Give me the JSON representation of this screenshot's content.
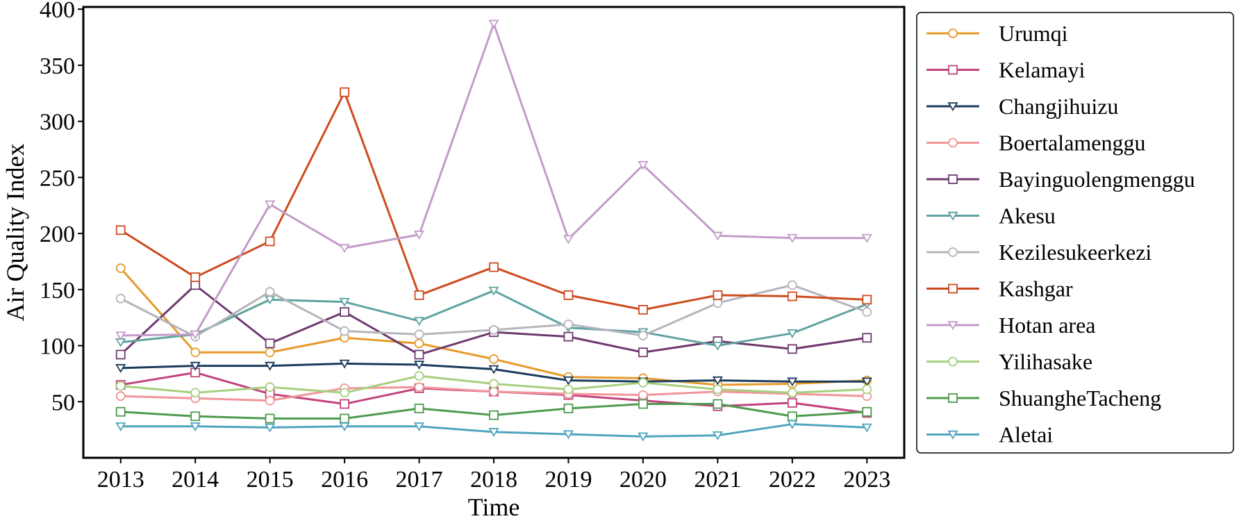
{
  "chart_data": {
    "type": "line",
    "xlabel": "Time",
    "ylabel": "Air Quality Index",
    "x": [
      "2013",
      "2014",
      "2015",
      "2016",
      "2017",
      "2018",
      "2019",
      "2020",
      "2021",
      "2022",
      "2023"
    ],
    "xlim": [
      2012.5,
      2023.5
    ],
    "ylim": [
      0,
      402
    ],
    "yticks": [
      50,
      100,
      150,
      200,
      250,
      300,
      350,
      400
    ],
    "grid": false,
    "legend_position": "right",
    "series": [
      {
        "name": "Urumqi",
        "color": "#E69A2A",
        "marker": "circle",
        "values": [
          169,
          94,
          94,
          107,
          102,
          88,
          72,
          71,
          65,
          66,
          69
        ]
      },
      {
        "name": "Kelamayi",
        "color": "#C2437C",
        "marker": "square",
        "values": [
          65,
          76,
          57,
          48,
          62,
          59,
          56,
          51,
          46,
          49,
          40
        ]
      },
      {
        "name": "Changjihuizu",
        "color": "#1B3A5C",
        "marker": "triangle-down",
        "values": [
          80,
          82,
          82,
          84,
          83,
          79,
          69,
          68,
          69,
          68,
          68
        ]
      },
      {
        "name": "Boertalamenggu",
        "color": "#F0959A",
        "marker": "circle",
        "values": [
          55,
          53,
          51,
          62,
          63,
          59,
          57,
          56,
          59,
          57,
          55
        ]
      },
      {
        "name": "Bayinguolengmenggu",
        "color": "#6E3A6E",
        "marker": "square",
        "values": [
          92,
          154,
          102,
          130,
          92,
          112,
          108,
          94,
          104,
          97,
          107
        ]
      },
      {
        "name": "Akesu",
        "color": "#5FA3A0",
        "marker": "triangle-down",
        "values": [
          103,
          110,
          141,
          139,
          122,
          149,
          116,
          112,
          100,
          111,
          137
        ]
      },
      {
        "name": "Kezilesukeerkezi",
        "color": "#B4B4BC",
        "marker": "circle",
        "values": [
          142,
          108,
          148,
          113,
          110,
          114,
          119,
          109,
          138,
          154,
          130
        ]
      },
      {
        "name": "Kashgar",
        "color": "#CE4A1E",
        "marker": "square",
        "values": [
          203,
          161,
          193,
          326,
          145,
          170,
          145,
          132,
          145,
          144,
          141
        ]
      },
      {
        "name": "Hotan area",
        "color": "#C39BC9",
        "marker": "triangle-down",
        "values": [
          109,
          110,
          226,
          187,
          199,
          387,
          195,
          261,
          198,
          196,
          196
        ]
      },
      {
        "name": "Yilihasake",
        "color": "#A7CF7E",
        "marker": "circle",
        "values": [
          64,
          58,
          63,
          58,
          73,
          66,
          61,
          67,
          61,
          58,
          61
        ]
      },
      {
        "name": "ShuangheTacheng",
        "color": "#4F9A4F",
        "marker": "square",
        "values": [
          41,
          37,
          35,
          35,
          44,
          38,
          44,
          48,
          48,
          37,
          41
        ]
      },
      {
        "name": "Aletai",
        "color": "#4FA5BE",
        "marker": "triangle-down",
        "values": [
          28,
          28,
          27,
          28,
          28,
          23,
          21,
          19,
          20,
          30,
          27
        ]
      }
    ]
  }
}
